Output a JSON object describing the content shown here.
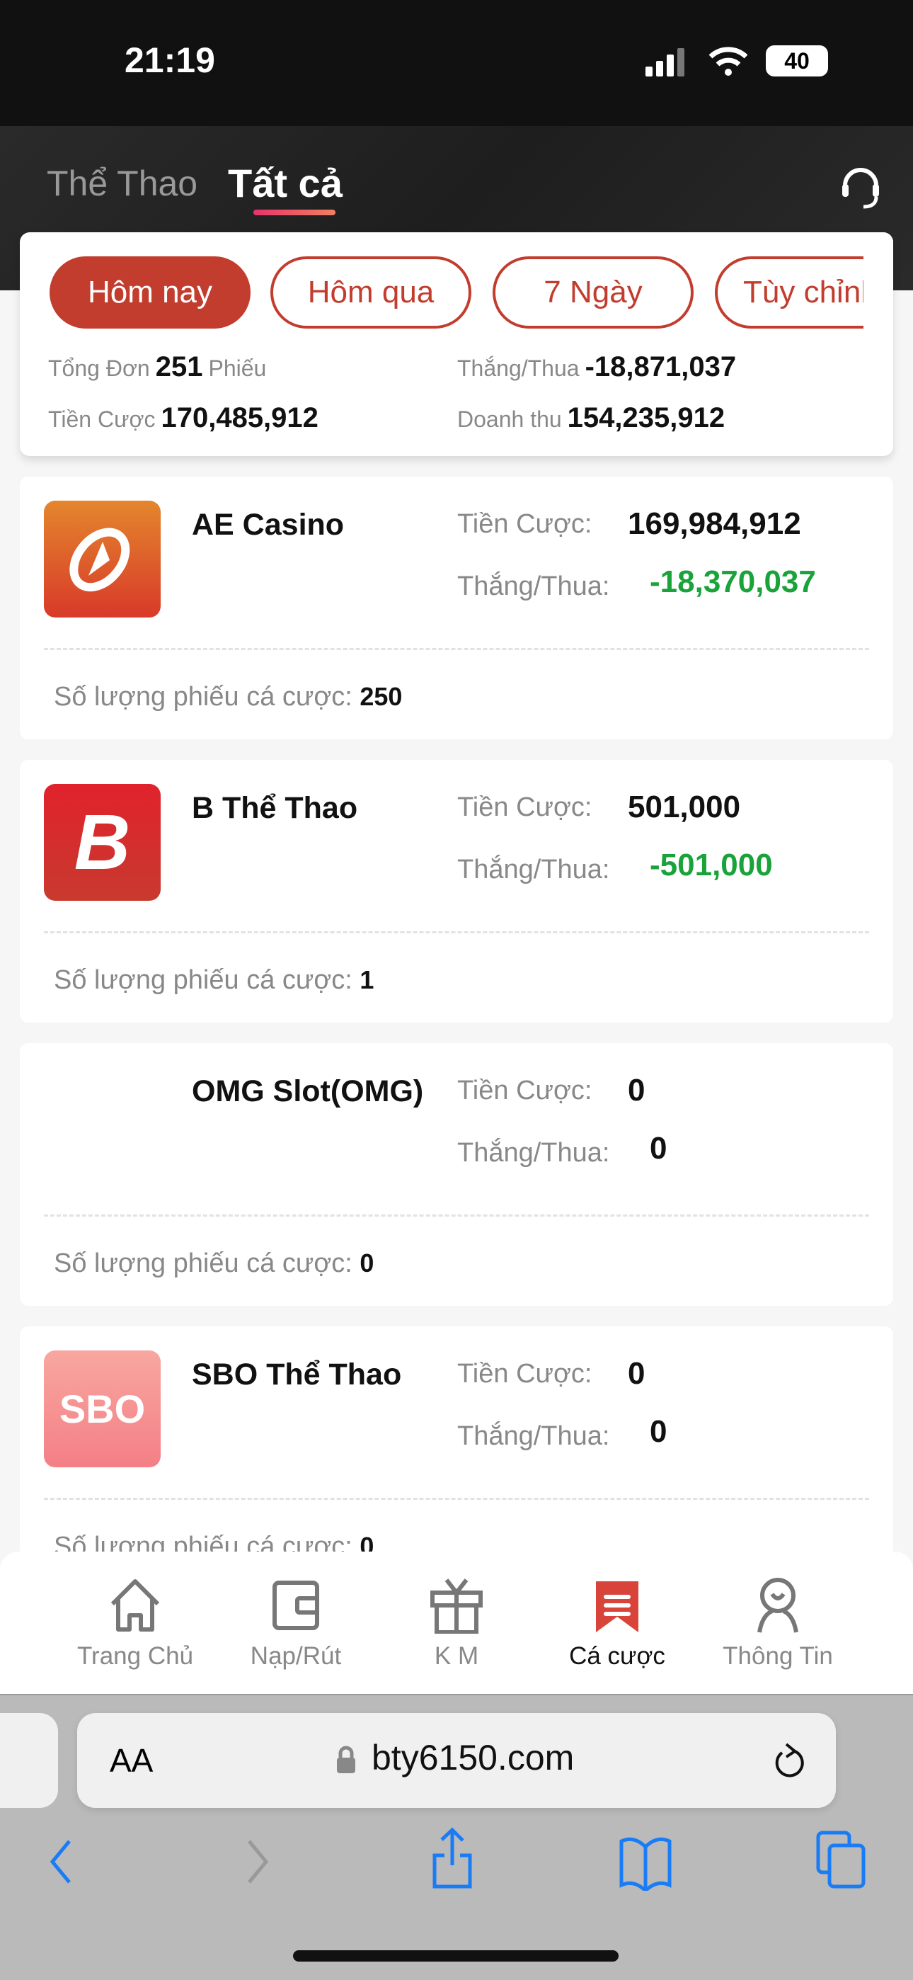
{
  "status_bar": {
    "time": "21:19",
    "battery": "40"
  },
  "header": {
    "tabs": [
      {
        "label": "Thể Thao",
        "active": false
      },
      {
        "label": "Tất cả",
        "active": true
      }
    ],
    "support_icon": "headset-icon"
  },
  "summary": {
    "filters": [
      {
        "label": "Hôm nay",
        "active": true
      },
      {
        "label": "Hôm qua"
      },
      {
        "label": "7 Ngày"
      },
      {
        "label": "Tùy chỉnh"
      }
    ],
    "total_orders_label": "Tổng Đơn",
    "total_orders": "251",
    "orders_unit": "Phiếu",
    "win_loss_label": "Thắng/Thua",
    "win_loss": "-18,871,037",
    "bet_label": "Tiền Cược",
    "bet": "170,485,912",
    "revenue_label": "Doanh thu",
    "revenue": "154,235,912"
  },
  "labels": {
    "bet": "Tiền Cược:",
    "win_loss": "Thắng/Thua:",
    "count": "Số lượng phiếu cá cược:"
  },
  "providers": [
    {
      "name": "AE Casino",
      "bet": "169,984,912",
      "win_loss": "-18,370,037",
      "count": "250"
    },
    {
      "name": "B Thể Thao",
      "bet": "501,000",
      "win_loss": "-501,000",
      "count": "1"
    },
    {
      "name": "OMG Slot(OMG)",
      "bet": "0",
      "win_loss": "0",
      "count": "0"
    },
    {
      "name": "SBO Thể Thao",
      "bet": "0",
      "win_loss": "0",
      "count": "0",
      "logo_text": "SBO"
    }
  ],
  "bottom_nav": [
    {
      "label": "Trang Chủ",
      "icon": "home-icon"
    },
    {
      "label": "Nạp/Rút",
      "icon": "wallet-icon"
    },
    {
      "label": "K M",
      "icon": "gift-icon"
    },
    {
      "label": "Cá cược",
      "icon": "bet-slip-icon",
      "active": true
    },
    {
      "label": "Thông Tin",
      "icon": "user-icon"
    }
  ],
  "browser": {
    "text_size": "AA",
    "url": "bty6150.com"
  },
  "colors": {
    "accent": "#c23d2e",
    "positive_negative": "#1aa33a",
    "safari_blue": "#1a7cf5"
  }
}
